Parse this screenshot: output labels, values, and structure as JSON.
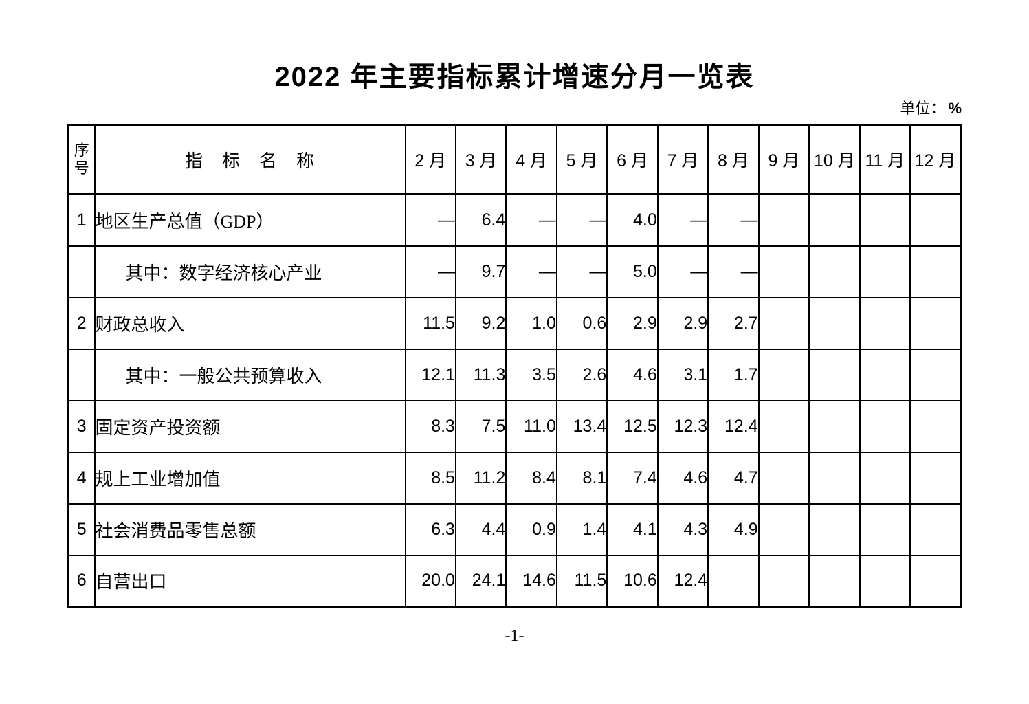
{
  "title": "2022 年主要指标累计增速分月一览表",
  "unit": {
    "prefix": "单位：",
    "symbol": "%"
  },
  "page_number": "-1-",
  "table": {
    "corner_header": "序号",
    "name_header": "指　标　名　称",
    "month_headers": [
      "2 月",
      "3 月",
      "4 月",
      "5 月",
      "6 月",
      "7 月",
      "8 月",
      "9 月",
      "10 月",
      "11 月",
      "12 月"
    ],
    "rows": [
      {
        "no": "1",
        "name": "地区生产总值（GDP）",
        "indent": false,
        "values": [
          "—",
          "6.4",
          "—",
          "—",
          "4.0",
          "—",
          "—",
          "",
          "",
          "",
          ""
        ]
      },
      {
        "no": "",
        "name": "其中：数字经济核心产业",
        "indent": true,
        "values": [
          "—",
          "9.7",
          "—",
          "—",
          "5.0",
          "—",
          "—",
          "",
          "",
          "",
          ""
        ]
      },
      {
        "no": "2",
        "name": "财政总收入",
        "indent": false,
        "values": [
          "11.5",
          "9.2",
          "1.0",
          "0.6",
          "2.9",
          "2.9",
          "2.7",
          "",
          "",
          "",
          ""
        ]
      },
      {
        "no": "",
        "name": "其中：一般公共预算收入",
        "indent": true,
        "values": [
          "12.1",
          "11.3",
          "3.5",
          "2.6",
          "4.6",
          "3.1",
          "1.7",
          "",
          "",
          "",
          ""
        ]
      },
      {
        "no": "3",
        "name": "固定资产投资额",
        "indent": false,
        "values": [
          "8.3",
          "7.5",
          "11.0",
          "13.4",
          "12.5",
          "12.3",
          "12.4",
          "",
          "",
          "",
          ""
        ]
      },
      {
        "no": "4",
        "name": "规上工业增加值",
        "indent": false,
        "values": [
          "8.5",
          "11.2",
          "8.4",
          "8.1",
          "7.4",
          "4.6",
          "4.7",
          "",
          "",
          "",
          ""
        ]
      },
      {
        "no": "5",
        "name": "社会消费品零售总额",
        "indent": false,
        "values": [
          "6.3",
          "4.4",
          "0.9",
          "1.4",
          "4.1",
          "4.3",
          "4.9",
          "",
          "",
          "",
          ""
        ]
      },
      {
        "no": "6",
        "name": "自营出口",
        "indent": false,
        "values": [
          "20.0",
          "24.1",
          "14.6",
          "11.5",
          "10.6",
          "12.4",
          "",
          "",
          "",
          "",
          ""
        ]
      }
    ]
  }
}
